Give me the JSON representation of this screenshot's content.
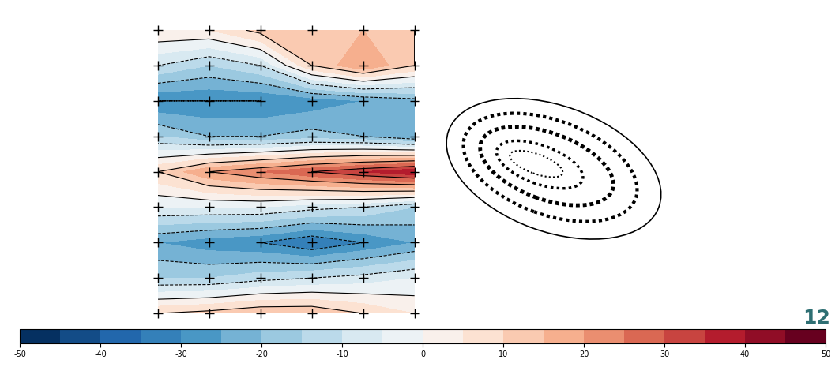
{
  "chart_data": {
    "type": "contour",
    "x": [
      0,
      1,
      2,
      3,
      4,
      5
    ],
    "y": [
      0,
      1,
      2,
      3,
      4,
      5,
      6,
      7,
      8
    ],
    "xlim": [
      0,
      5
    ],
    "ylim": [
      0,
      8
    ],
    "tick_labels": false,
    "cells": [
      [
        10,
        12,
        15,
        15,
        10,
        5
      ],
      [
        -15,
        -15,
        -12,
        -10,
        -8,
        -5
      ],
      [
        -25,
        -28,
        -30,
        -35,
        -30,
        -25
      ],
      [
        -5,
        -5,
        -5,
        -8,
        -10,
        -15
      ],
      [
        10,
        20,
        25,
        30,
        35,
        40
      ],
      [
        -15,
        -20,
        -20,
        -18,
        -20,
        -25
      ],
      [
        -30,
        -30,
        -30,
        -28,
        -25,
        -22
      ],
      [
        -10,
        -15,
        -10,
        10,
        20,
        10
      ],
      [
        5,
        5,
        12,
        15,
        15,
        10
      ]
    ],
    "line_levels": [
      -30,
      -20,
      -10,
      0,
      10,
      20,
      30
    ],
    "colorbar": {
      "range": [
        -50,
        50
      ],
      "levels": [
        -50,
        -45,
        -40,
        -35,
        -30,
        -25,
        -20,
        -15,
        -10,
        -5,
        0,
        5,
        10,
        15,
        20,
        25,
        30,
        35,
        40,
        45,
        50
      ],
      "ticks": [
        -50,
        -40,
        -30,
        -20,
        -10,
        0,
        10,
        20,
        30,
        40,
        50
      ]
    }
  },
  "page_number": "12"
}
